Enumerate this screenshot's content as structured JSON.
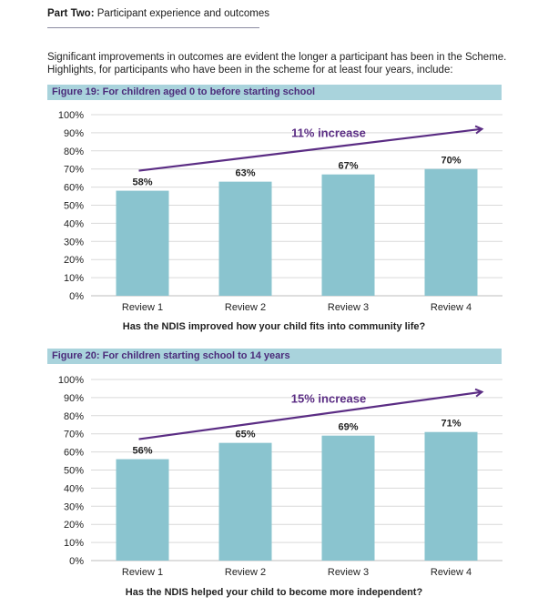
{
  "header": {
    "part_label": "Part Two:",
    "part_title": "Participant experience and outcomes"
  },
  "intro": {
    "line1": "Significant improvements in outcomes are evident the longer a participant has been in the Scheme.",
    "line2": "Highlights, for participants who have been in the scheme for at least four years, include:"
  },
  "colors": {
    "bar": "#8ac4cf",
    "arrow": "#5b2d84",
    "banner": "#a9d3dc",
    "grid": "#d9d9d9"
  },
  "chart_data": [
    {
      "type": "bar",
      "title": "Figure 19: For children aged 0 to before starting school",
      "categories": [
        "Review 1",
        "Review 2",
        "Review 3",
        "Review 4"
      ],
      "values": [
        58,
        63,
        67,
        70
      ],
      "value_labels": [
        "58%",
        "63%",
        "67%",
        "70%"
      ],
      "y_ticks": [
        "0%",
        "10%",
        "20%",
        "30%",
        "40%",
        "50%",
        "60%",
        "70%",
        "80%",
        "90%",
        "100%"
      ],
      "ylim": [
        0,
        100
      ],
      "annotation": "11% increase",
      "xlabel": "Has the NDIS improved how your child fits into community life?",
      "grid": true
    },
    {
      "type": "bar",
      "title": "Figure 20: For children starting school to 14 years",
      "categories": [
        "Review 1",
        "Review 2",
        "Review 3",
        "Review 4"
      ],
      "values": [
        56,
        65,
        69,
        71
      ],
      "value_labels": [
        "56%",
        "65%",
        "69%",
        "71%"
      ],
      "y_ticks": [
        "0%",
        "10%",
        "20%",
        "30%",
        "40%",
        "50%",
        "60%",
        "70%",
        "80%",
        "90%",
        "100%"
      ],
      "ylim": [
        0,
        100
      ],
      "annotation": "15% increase",
      "xlabel": "Has the NDIS helped your child to become more independent?",
      "grid": true
    }
  ]
}
